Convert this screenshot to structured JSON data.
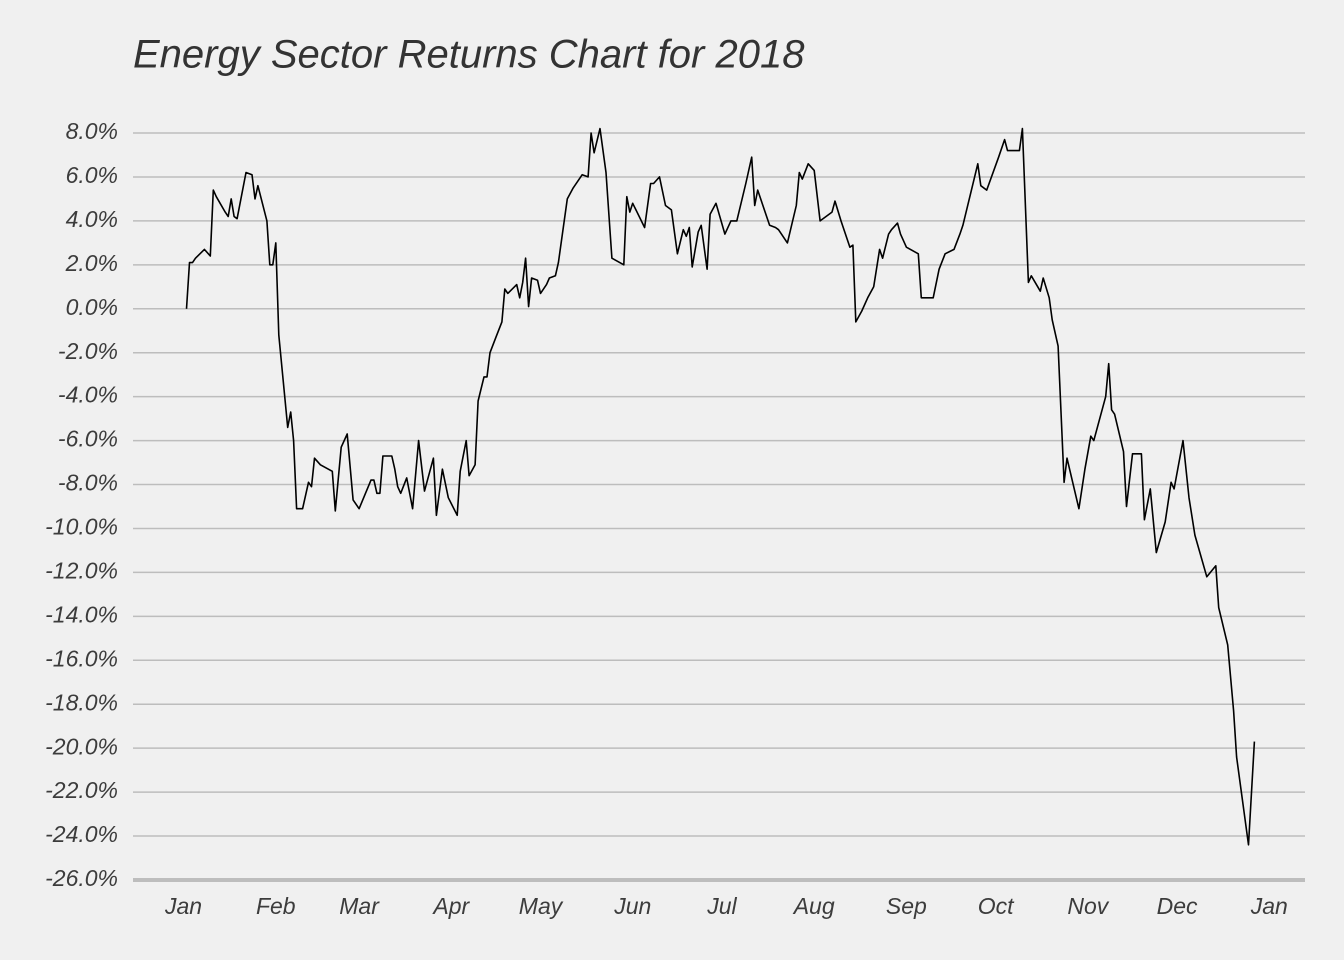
{
  "chart_data": {
    "type": "line",
    "title": "Energy Sector Returns Chart for 2018",
    "x": [
      1,
      2,
      3,
      4,
      7,
      9,
      10,
      11,
      14,
      15,
      16,
      17,
      18,
      21,
      23,
      24,
      25,
      28,
      29,
      30,
      31,
      32,
      35,
      36,
      37,
      38,
      40,
      42,
      43,
      44,
      46,
      50,
      51,
      53,
      55,
      57,
      59,
      63,
      64,
      65,
      66,
      67,
      70,
      71,
      72,
      73,
      75,
      77,
      79,
      81,
      84,
      85,
      87,
      89,
      92,
      93,
      95,
      96,
      98,
      99,
      101,
      102,
      103,
      105,
      107,
      108,
      109,
      112,
      113,
      114,
      115,
      116,
      117,
      119,
      120,
      122,
      123,
      125,
      126,
      129,
      131,
      134,
      136,
      137,
      138,
      140,
      142,
      144,
      148,
      149,
      150,
      151,
      155,
      157,
      158,
      160,
      162,
      164,
      166,
      168,
      169,
      170,
      171,
      173,
      174,
      176,
      177,
      179,
      182,
      184,
      186,
      189,
      191,
      192,
      193,
      197,
      199,
      200,
      203,
      206,
      207,
      208,
      210,
      212,
      214,
      218,
      219,
      221,
      224,
      225,
      226,
      228,
      230,
      232,
      234,
      235,
      237,
      238,
      240,
      241,
      243,
      247,
      248,
      252,
      254,
      256,
      259,
      261,
      262,
      267,
      268,
      270,
      274,
      276,
      277,
      281,
      282,
      284,
      285,
      288,
      289,
      291,
      292,
      294,
      296,
      297,
      301,
      303,
      305,
      306,
      310,
      311,
      312,
      313,
      316,
      317,
      319,
      322,
      323,
      325,
      327,
      330,
      332,
      333,
      336,
      338,
      340,
      344,
      347,
      348,
      351,
      353,
      354,
      358,
      360
    ],
    "values": [
      0,
      2.1,
      2.1,
      2.3,
      2.7,
      2.4,
      5.4,
      5.1,
      4.4,
      4.2,
      5.0,
      4.2,
      4.1,
      6.2,
      6.1,
      5.0,
      5.6,
      4.0,
      2.0,
      2.0,
      3.0,
      -1.2,
      -5.4,
      -4.7,
      -6.0,
      -9.1,
      -9.1,
      -7.9,
      -8.1,
      -6.8,
      -7.1,
      -7.4,
      -9.2,
      -6.3,
      -5.7,
      -8.7,
      -9.1,
      -7.8,
      -7.8,
      -8.4,
      -8.4,
      -6.7,
      -6.7,
      -7.3,
      -8.1,
      -8.4,
      -7.7,
      -9.1,
      -6.0,
      -8.3,
      -6.8,
      -9.4,
      -7.3,
      -8.6,
      -9.4,
      -7.4,
      -6.0,
      -7.6,
      -7.1,
      -4.2,
      -3.1,
      -3.1,
      -2.0,
      -1.3,
      -0.6,
      0.9,
      0.7,
      1.1,
      0.5,
      1.2,
      2.3,
      0.1,
      1.4,
      1.3,
      0.7,
      1.1,
      1.4,
      1.5,
      2.1,
      5.0,
      5.5,
      6.1,
      6.0,
      8.0,
      7.1,
      8.2,
      6.2,
      2.3,
      2.0,
      5.1,
      4.4,
      4.8,
      3.7,
      5.7,
      5.7,
      6.0,
      4.7,
      4.5,
      2.5,
      3.6,
      3.3,
      3.7,
      1.9,
      3.5,
      3.8,
      1.8,
      4.3,
      4.8,
      3.4,
      4.0,
      4.0,
      5.7,
      6.9,
      4.7,
      5.4,
      3.8,
      3.7,
      3.6,
      3.0,
      4.7,
      6.2,
      5.9,
      6.6,
      6.3,
      4.0,
      4.4,
      4.9,
      4.0,
      2.8,
      2.9,
      -0.6,
      -0.1,
      0.5,
      1.0,
      2.7,
      2.3,
      3.4,
      3.6,
      3.9,
      3.4,
      2.8,
      2.5,
      0.5,
      0.5,
      1.8,
      2.5,
      2.7,
      3.4,
      3.8,
      6.6,
      5.6,
      5.4,
      6.9,
      7.7,
      7.2,
      7.2,
      8.2,
      1.2,
      1.5,
      0.8,
      1.4,
      0.5,
      -0.5,
      -1.7,
      -7.9,
      -6.8,
      -9.1,
      -7.3,
      -5.8,
      -6.0,
      -4.0,
      -2.5,
      -4.6,
      -4.8,
      -6.5,
      -9.0,
      -6.6,
      -6.6,
      -9.6,
      -8.2,
      -11.1,
      -9.7,
      -7.9,
      -8.2,
      -6.0,
      -8.6,
      -10.3,
      -12.2,
      -11.7,
      -13.6,
      -15.3,
      -18.3,
      -20.4,
      -24.4,
      -19.7
    ],
    "color": "#000000",
    "xlim": [
      -17,
      377
    ],
    "xticks": [
      {
        "value": 0,
        "label": "Jan"
      },
      {
        "value": 31,
        "label": "Feb"
      },
      {
        "value": 59,
        "label": "Mar"
      },
      {
        "value": 90,
        "label": "Apr"
      },
      {
        "value": 120,
        "label": "May"
      },
      {
        "value": 151,
        "label": "Jun"
      },
      {
        "value": 181,
        "label": "Jul"
      },
      {
        "value": 212,
        "label": "Aug"
      },
      {
        "value": 243,
        "label": "Sep"
      },
      {
        "value": 273,
        "label": "Oct"
      },
      {
        "value": 304,
        "label": "Nov"
      },
      {
        "value": 334,
        "label": "Dec"
      },
      {
        "value": 365,
        "label": "Jan"
      }
    ],
    "ylim": [
      -26,
      8
    ],
    "yticks": [
      {
        "value": 8,
        "label": "8.0%"
      },
      {
        "value": 6,
        "label": "6.0%"
      },
      {
        "value": 4,
        "label": "4.0%"
      },
      {
        "value": 2,
        "label": "2.0%"
      },
      {
        "value": 0,
        "label": "0.0%"
      },
      {
        "value": -2,
        "label": "-2.0%"
      },
      {
        "value": -4,
        "label": "-4.0%"
      },
      {
        "value": -6,
        "label": "-6.0%"
      },
      {
        "value": -8,
        "label": "-8.0%"
      },
      {
        "value": -10,
        "label": "-10.0%"
      },
      {
        "value": -12,
        "label": "-12.0%"
      },
      {
        "value": -14,
        "label": "-14.0%"
      },
      {
        "value": -16,
        "label": "-16.0%"
      },
      {
        "value": -18,
        "label": "-18.0%"
      },
      {
        "value": -20,
        "label": "-20.0%"
      },
      {
        "value": -22,
        "label": "-22.0%"
      },
      {
        "value": -24,
        "label": "-24.0%"
      },
      {
        "value": -26,
        "label": "-26.0%"
      }
    ],
    "grid": true
  }
}
